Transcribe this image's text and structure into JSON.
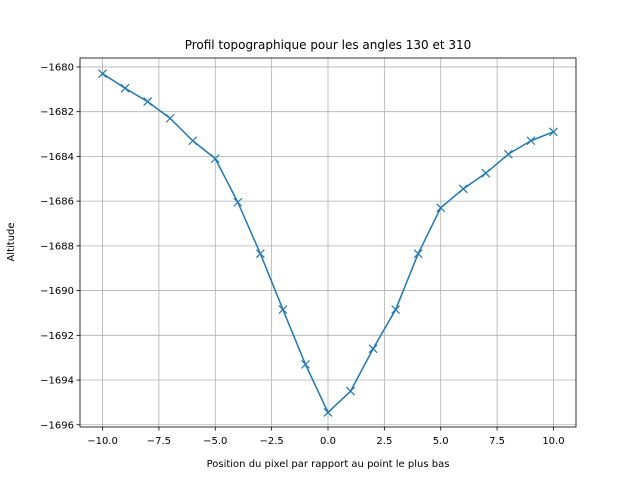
{
  "chart_data": {
    "type": "line",
    "title": "Profil topographique pour les angles 130 et 310",
    "xlabel": "Position du pixel par rapport au point le plus bas",
    "ylabel": "Altitude",
    "xlim": [
      -11,
      11
    ],
    "ylim": [
      -1696.1,
      -1679.6
    ],
    "xticks": [
      -10,
      -7.5,
      -5,
      -2.5,
      0,
      2.5,
      5,
      7.5,
      10
    ],
    "xtick_labels": [
      "−10.0",
      "−7.5",
      "−5.0",
      "−2.5",
      "0.0",
      "2.5",
      "5.0",
      "7.5",
      "10.0"
    ],
    "yticks": [
      -1680,
      -1682,
      -1684,
      -1686,
      -1688,
      -1690,
      -1692,
      -1694,
      -1696
    ],
    "ytick_labels": [
      "−1680",
      "−1682",
      "−1684",
      "−1686",
      "−1688",
      "−1690",
      "−1692",
      "−1694",
      "−1696"
    ],
    "grid": true,
    "marker": "x",
    "series_color": "#1f77b4",
    "x": [
      -10,
      -9,
      -8,
      -7,
      -6,
      -5,
      -4,
      -3,
      -2,
      -1,
      0,
      1,
      2,
      3,
      4,
      5,
      6,
      7,
      8,
      9,
      10
    ],
    "values": [
      -1680.3,
      -1680.95,
      -1681.55,
      -1682.3,
      -1683.3,
      -1684.1,
      -1686.05,
      -1688.35,
      -1690.85,
      -1693.3,
      -1695.45,
      -1694.5,
      -1692.6,
      -1690.85,
      -1688.35,
      -1686.3,
      -1685.45,
      -1684.75,
      -1683.9,
      -1683.3,
      -1682.9
    ]
  }
}
